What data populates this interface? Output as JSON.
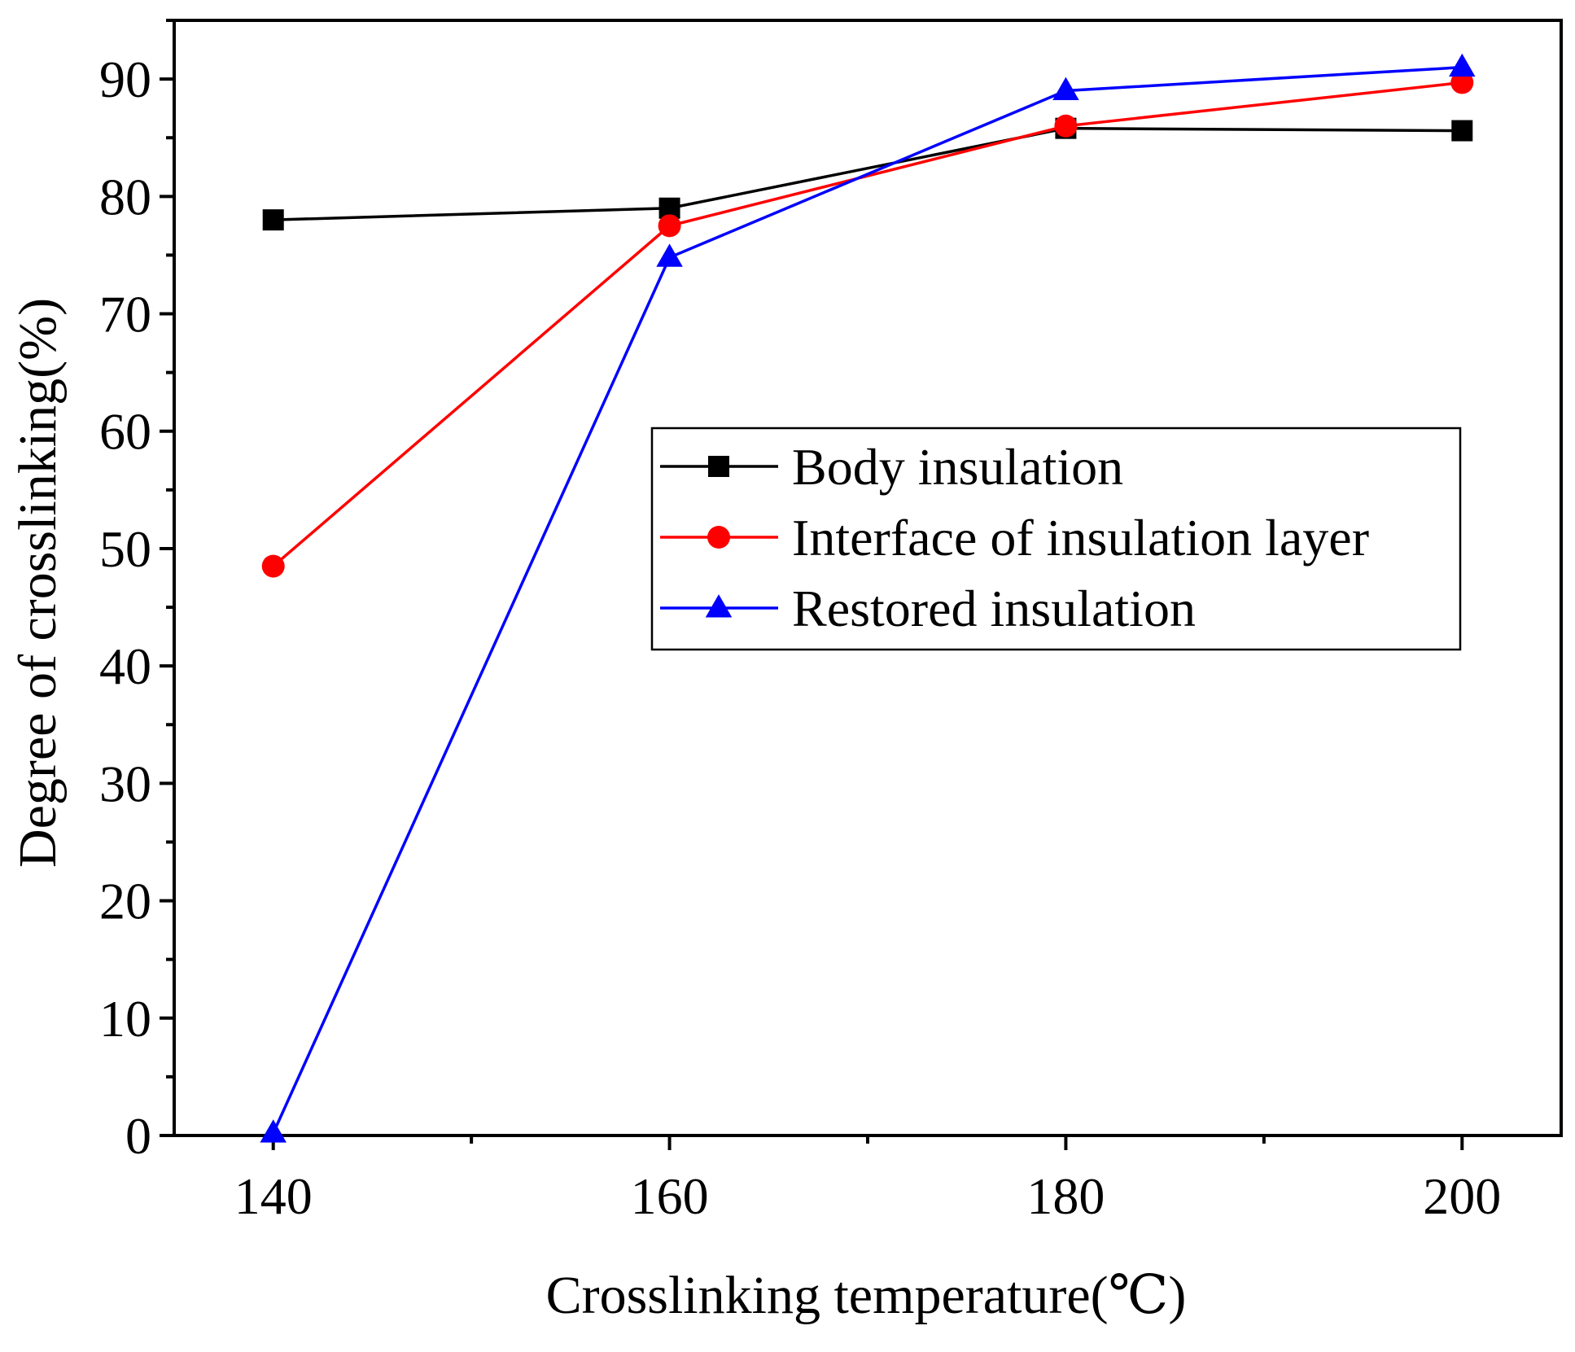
{
  "chart_data": {
    "type": "line",
    "title": "",
    "xlabel": "Crosslinking temperature(℃)",
    "ylabel": "Degree of crosslinking(%)",
    "xlim": [
      135,
      205
    ],
    "ylim": [
      0,
      95
    ],
    "x": [
      140,
      160,
      180,
      200
    ],
    "xticks": [
      140,
      160,
      180,
      200
    ],
    "xtick_labels": [
      "140",
      "160",
      "180",
      "200"
    ],
    "yticks": [
      0,
      10,
      20,
      30,
      40,
      50,
      60,
      70,
      80,
      90
    ],
    "ytick_labels": [
      "0",
      "10",
      "20",
      "30",
      "40",
      "50",
      "60",
      "70",
      "80",
      "90"
    ],
    "grid": false,
    "legend_position": "center-right",
    "series": [
      {
        "name": "Body insulation",
        "values": [
          78,
          79,
          85.8,
          85.6
        ],
        "color": "#000000",
        "marker": "square"
      },
      {
        "name": "Interface of insulation  layer",
        "values": [
          48.5,
          77.5,
          86,
          89.7
        ],
        "color": "#ff0000",
        "marker": "circle"
      },
      {
        "name": "Restored insulation",
        "values": [
          0.2,
          74.8,
          89,
          91
        ],
        "color": "#0000ff",
        "marker": "triangle"
      }
    ]
  }
}
